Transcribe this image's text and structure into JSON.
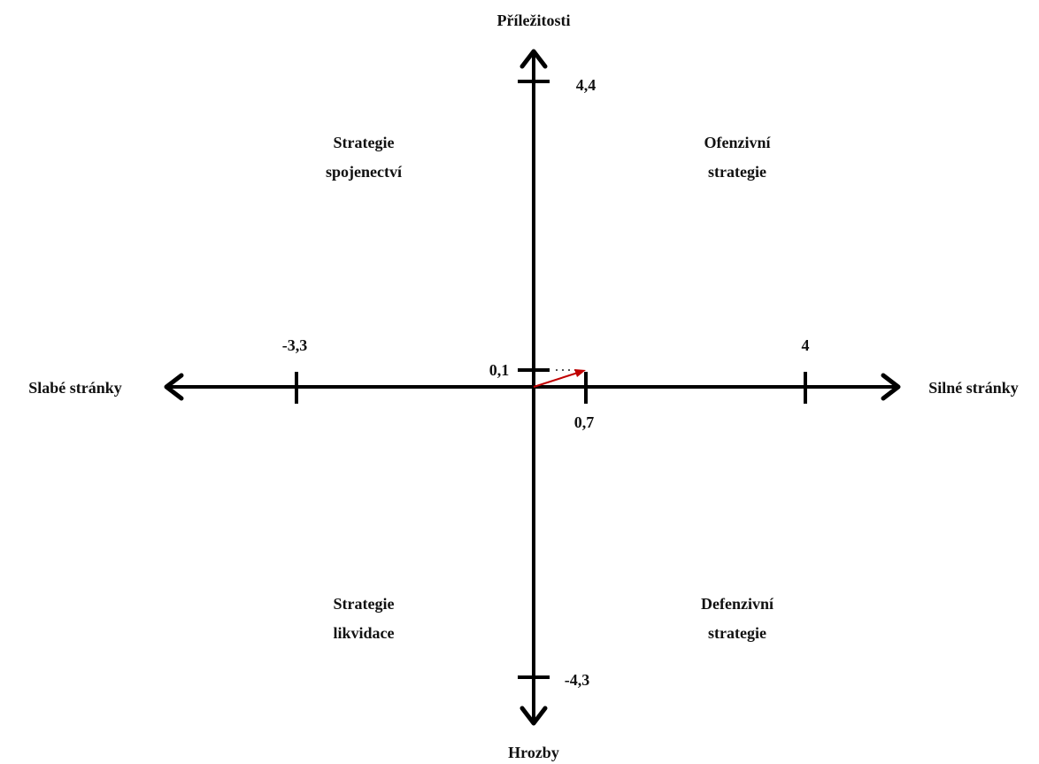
{
  "axes": {
    "top": "Příležitosti",
    "bottom": "Hrozby",
    "left": "Slabé stránky",
    "right": "Silné stránky"
  },
  "ticks": {
    "top": "4,4",
    "bottom": "-4,3",
    "left": "-3,3",
    "right": "4",
    "point_x": "0,7",
    "point_y": "0,1"
  },
  "quadrants": [
    {
      "lines": [
        "Strategie",
        "spojenectví"
      ]
    },
    {
      "lines": [
        "Ofenzivní",
        "strategie"
      ]
    },
    {
      "lines": [
        "Strategie",
        "likvidace"
      ]
    },
    {
      "lines": [
        "Defenzivní",
        "strategie"
      ]
    }
  ]
}
